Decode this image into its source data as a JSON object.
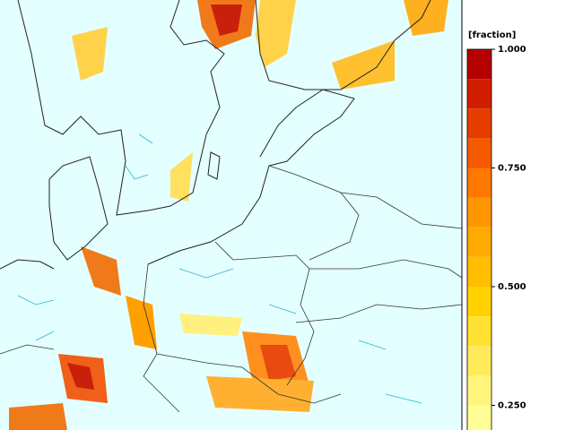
{
  "legend": {
    "title": "[fraction]",
    "range": [
      0.1875,
      1
    ],
    "bounds": [
      1,
      0.9375,
      0.875,
      0.8125,
      0.75,
      0.6875,
      0.625,
      0.5625,
      0.5,
      0.4375,
      0.375,
      0.3125,
      0.25,
      0.1875
    ],
    "colors": [
      "#b40000",
      "#d21e00",
      "#e63c00",
      "#f55a00",
      "#ff7800",
      "#ff9600",
      "#ffaa00",
      "#ffbe00",
      "#ffd200",
      "#ffe132",
      "#ffeb5a",
      "#fff57d",
      "#ffff96"
    ],
    "ticks": [
      {
        "value": 1,
        "label": "1.000"
      },
      {
        "value": 0.75,
        "label": "0.750"
      },
      {
        "value": 0.5,
        "label": "0.500"
      },
      {
        "value": 0.25,
        "label": "0.250"
      }
    ]
  }
}
